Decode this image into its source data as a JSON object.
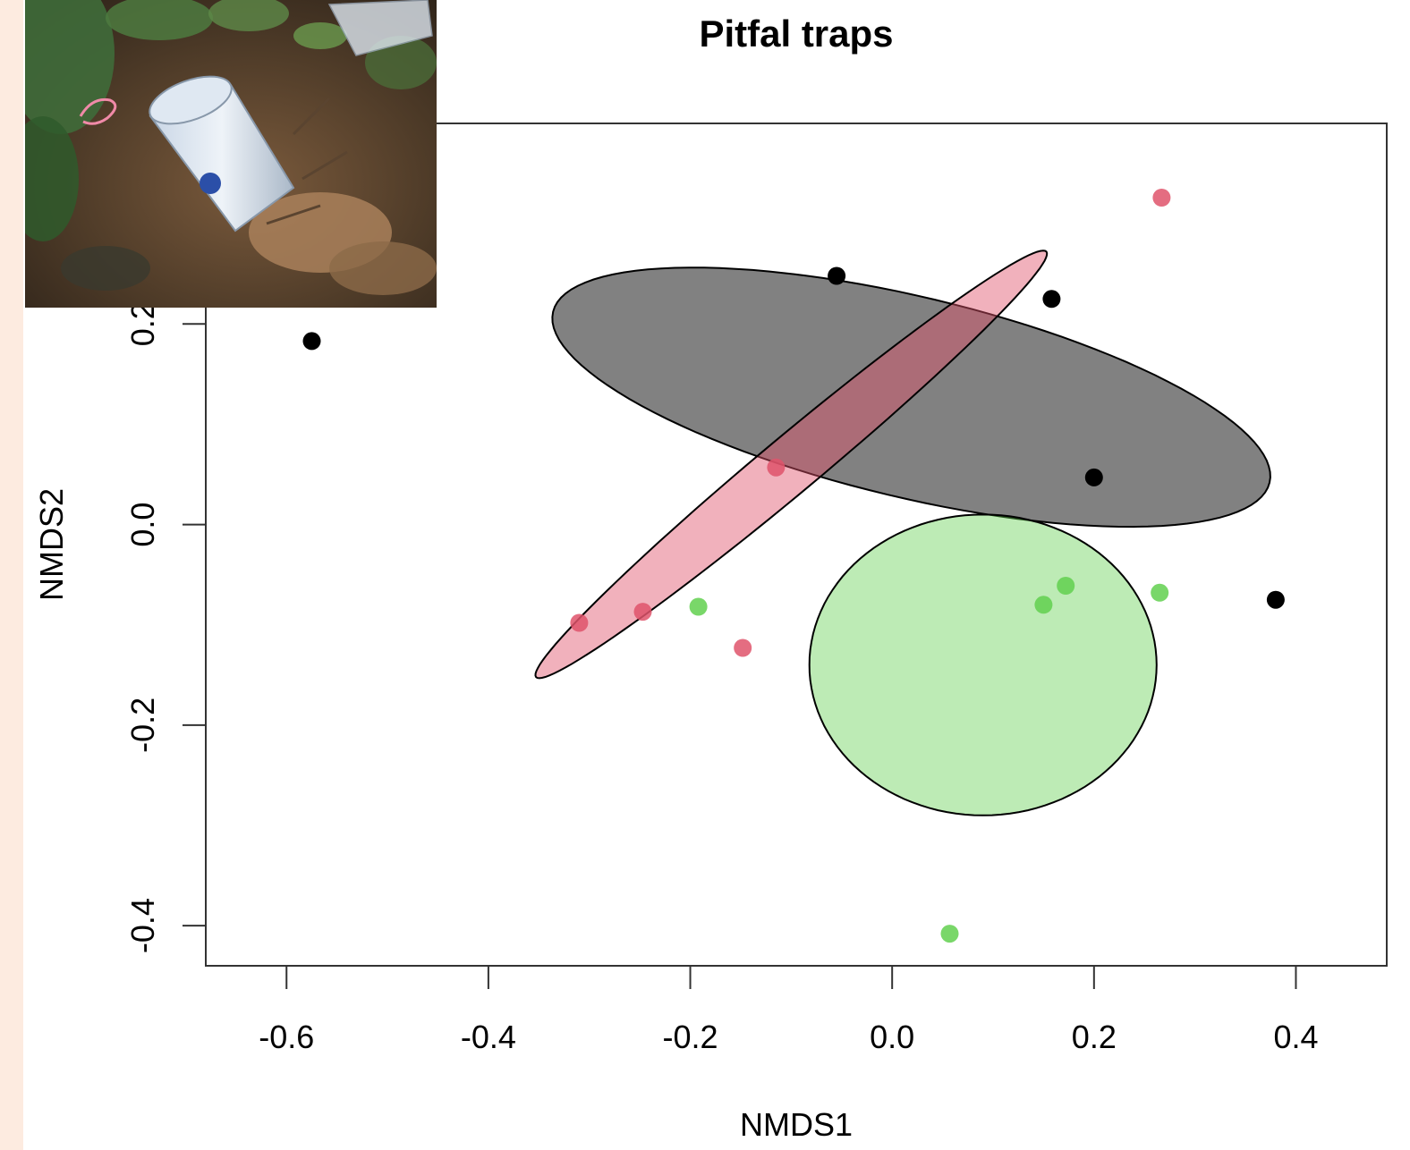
{
  "chart_data": {
    "type": "scatter",
    "title": "Pitfal traps",
    "xlabel": "NMDS1",
    "ylabel": "NMDS2",
    "xlim": [
      -0.68,
      0.49
    ],
    "ylim": [
      -0.44,
      0.4
    ],
    "xticks": [
      -0.6,
      -0.4,
      -0.2,
      0.0,
      0.2,
      0.4
    ],
    "xtick_labels": [
      "-0.6",
      "-0.4",
      "-0.2",
      "0.0",
      "0.2",
      "0.4"
    ],
    "yticks": [
      -0.4,
      -0.2,
      0.0,
      0.2
    ],
    "ytick_labels": [
      "-0.4",
      "-0.2",
      "0.0",
      "0.2"
    ],
    "grid": false,
    "legend": "none",
    "series": [
      {
        "color": "#000000",
        "points": [
          {
            "x": -0.575,
            "y": 0.183
          },
          {
            "x": -0.055,
            "y": 0.248
          },
          {
            "x": 0.158,
            "y": 0.225
          },
          {
            "x": 0.2,
            "y": 0.047
          },
          {
            "x": 0.38,
            "y": -0.075
          }
        ],
        "ellipse": {
          "cx": 0.019,
          "cy": 0.127,
          "rx": 0.365,
          "ry": 0.1,
          "angle_deg": -13.5,
          "fill": "#505050",
          "opacity": 0.72
        }
      },
      {
        "color": "#df536b",
        "points": [
          {
            "x": 0.267,
            "y": 0.326
          },
          {
            "x": -0.115,
            "y": 0.057
          },
          {
            "x": -0.31,
            "y": -0.098
          },
          {
            "x": -0.247,
            "y": -0.087
          },
          {
            "x": -0.148,
            "y": -0.123
          }
        ],
        "ellipse": {
          "cx": -0.1,
          "cy": 0.06,
          "rx": 0.33,
          "ry": 0.028,
          "angle_deg": 40,
          "fill": "#df536b",
          "opacity": 0.45
        }
      },
      {
        "color": "#61d04f",
        "points": [
          {
            "x": -0.192,
            "y": -0.082
          },
          {
            "x": 0.15,
            "y": -0.08
          },
          {
            "x": 0.172,
            "y": -0.061
          },
          {
            "x": 0.265,
            "y": -0.068
          },
          {
            "x": 0.057,
            "y": -0.408
          }
        ],
        "ellipse": {
          "cx": 0.09,
          "cy": -0.14,
          "rx": 0.172,
          "ry": 0.15,
          "angle_deg": 0,
          "fill": "#61d04f",
          "opacity": 0.42
        }
      }
    ]
  },
  "photo": {
    "description_icon": "pitfall-trap-photo-icon"
  }
}
